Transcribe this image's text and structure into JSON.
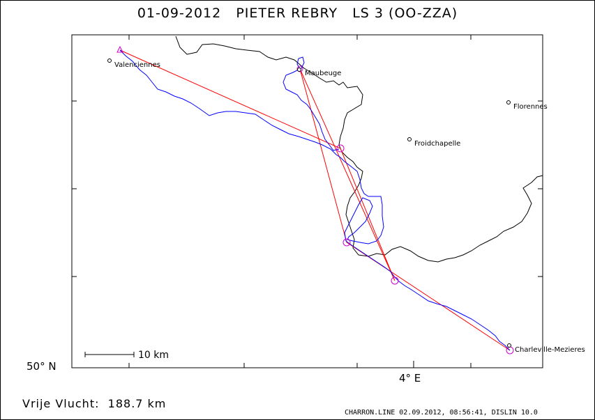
{
  "title": "01-09-2012   PIETER REBRY   LS 3 (OO-ZZA)",
  "axes": {
    "lat_label": "50° N",
    "lon_label": "4° E"
  },
  "scale_bar": {
    "label": "10 km"
  },
  "places": [
    {
      "name": "Valenciennes"
    },
    {
      "name": "Maubeuge"
    },
    {
      "name": "Florennes"
    },
    {
      "name": "Froidchapelle"
    },
    {
      "name": "Charleville-Mezieres"
    }
  ],
  "footer": {
    "distance": "Vrije Vlucht:  188.7 km",
    "credits": "CHARRON.LINE 02.09.2012, 08:56:41, DISLIN 10.0"
  },
  "colors": {
    "track": "#0000ff",
    "task": "#ff0000",
    "turnpoints": "#cc00cc",
    "border": "#000000"
  }
}
